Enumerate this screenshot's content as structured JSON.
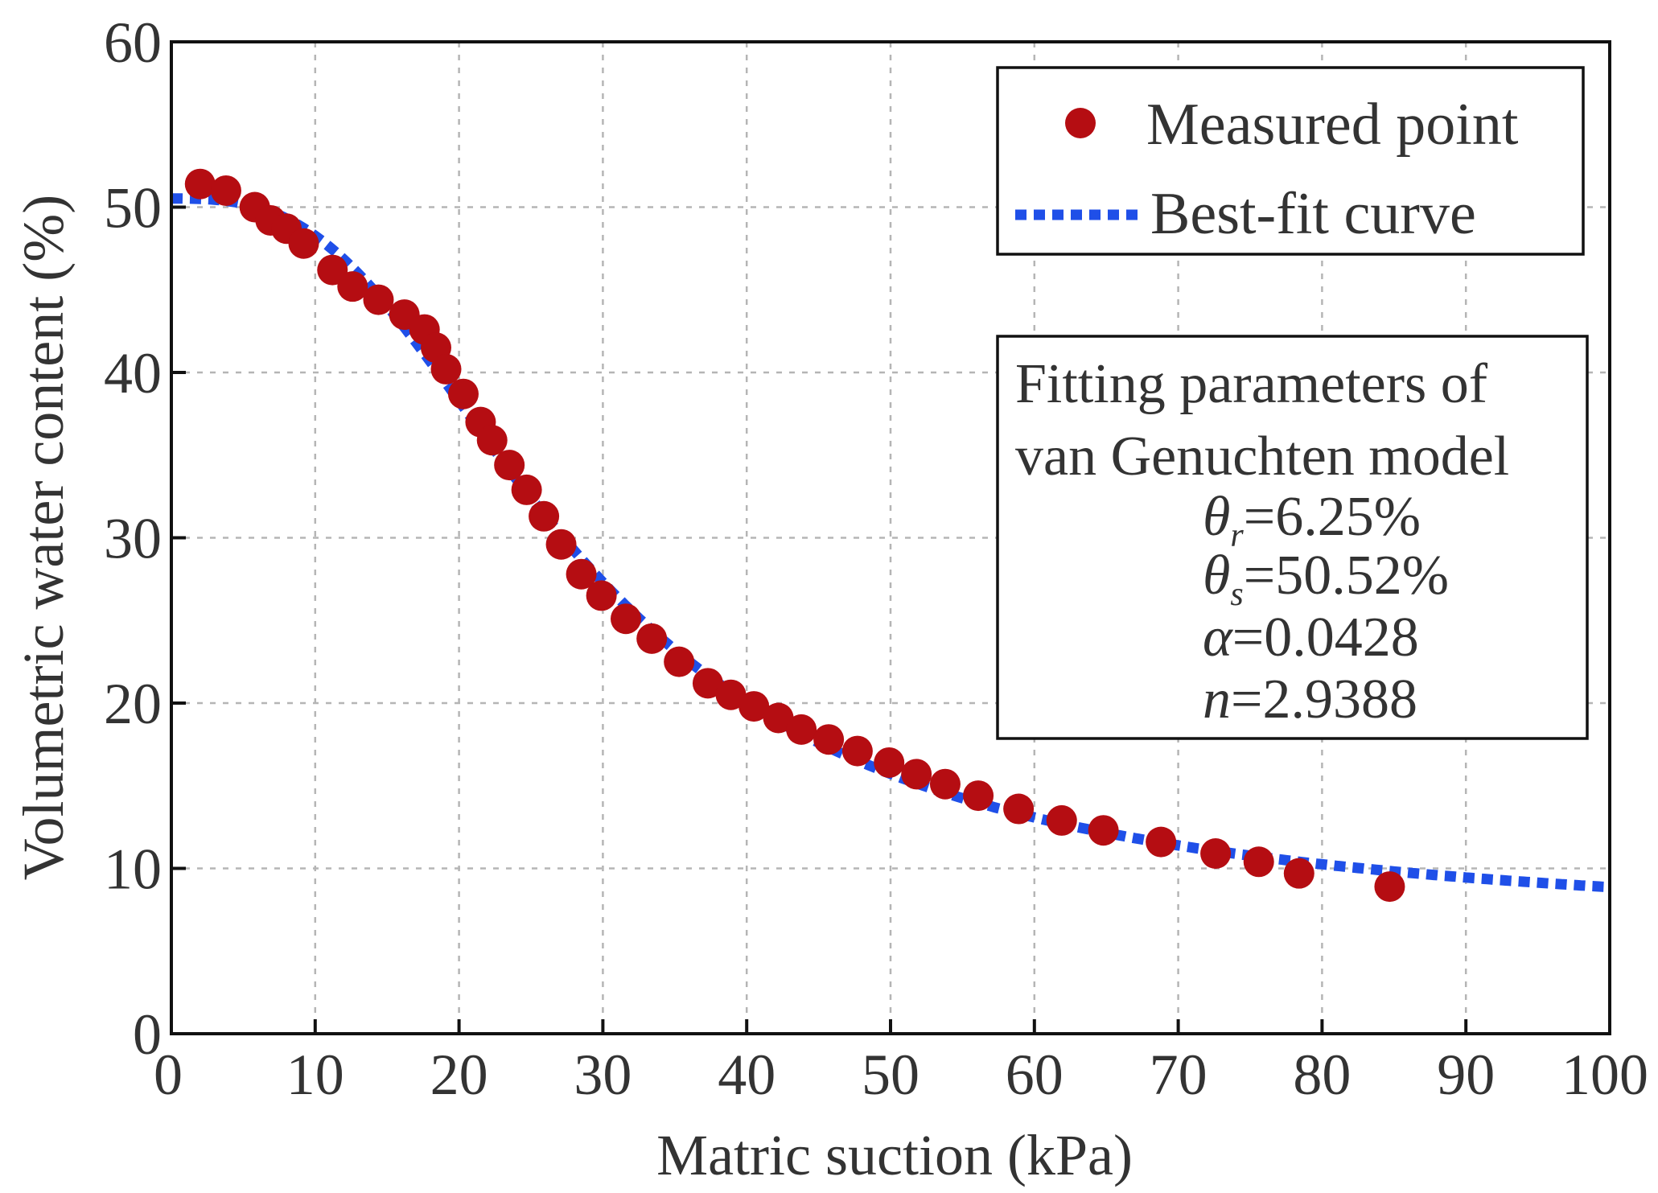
{
  "chart_data": {
    "type": "scatter",
    "title": "",
    "xlabel": "Matric suction (kPa)",
    "ylabel": "Volumetric water content (%)",
    "xlim": [
      0,
      100
    ],
    "ylim": [
      0,
      60
    ],
    "xticks": [
      0,
      10,
      20,
      30,
      40,
      50,
      60,
      70,
      80,
      90,
      100
    ],
    "yticks": [
      0,
      10,
      20,
      30,
      40,
      50,
      60
    ],
    "grid": true,
    "legend_position": "top-right",
    "colors": {
      "measured": "#b50d12",
      "fit": "#1f4fe8"
    },
    "series": [
      {
        "name": "Measured point",
        "kind": "scatter",
        "x": [
          2,
          3.8,
          5.8,
          6.9,
          8,
          9.2,
          11.2,
          12.6,
          14.4,
          16.2,
          17.6,
          18.4,
          19.1,
          20.3,
          21.5,
          22.3,
          23.5,
          24.7,
          25.9,
          27.1,
          28.5,
          29.9,
          31.6,
          33.4,
          35.3,
          37.3,
          38.9,
          40.5,
          42.2,
          43.8,
          45.7,
          47.7,
          49.9,
          51.8,
          53.8,
          56.1,
          58.9,
          61.9,
          64.8,
          68.8,
          72.6,
          75.6,
          78.4,
          84.7
        ],
        "y": [
          51.4,
          51.0,
          50.0,
          49.2,
          48.7,
          47.8,
          46.2,
          45.2,
          44.4,
          43.5,
          42.6,
          41.5,
          40.2,
          38.7,
          37.0,
          35.9,
          34.4,
          32.9,
          31.3,
          29.6,
          27.8,
          26.5,
          25.1,
          23.9,
          22.5,
          21.2,
          20.5,
          19.8,
          19.1,
          18.4,
          17.8,
          17.1,
          16.4,
          15.7,
          15.1,
          14.4,
          13.6,
          12.9,
          12.3,
          11.6,
          10.9,
          10.4,
          9.7,
          8.9
        ]
      },
      {
        "name": "Best-fit curve",
        "kind": "line",
        "model": "van Genuchten",
        "theta_r": 6.25,
        "theta_s": 50.52,
        "alpha": 0.0428,
        "n": 2.9388,
        "x_range": [
          0,
          100
        ]
      }
    ],
    "parameters_box": {
      "heading_line1": "Fitting parameters of",
      "heading_line2": "van Genuchten model",
      "theta_r": {
        "symbol": "θ",
        "sub": "r",
        "value": "=6.25%"
      },
      "theta_s": {
        "symbol": "θ",
        "sub": "s",
        "value": "=50.52%"
      },
      "alpha": {
        "symbol": "α",
        "value": "=0.0428"
      },
      "n": {
        "symbol": "n",
        "value": "=2.9388"
      }
    }
  }
}
